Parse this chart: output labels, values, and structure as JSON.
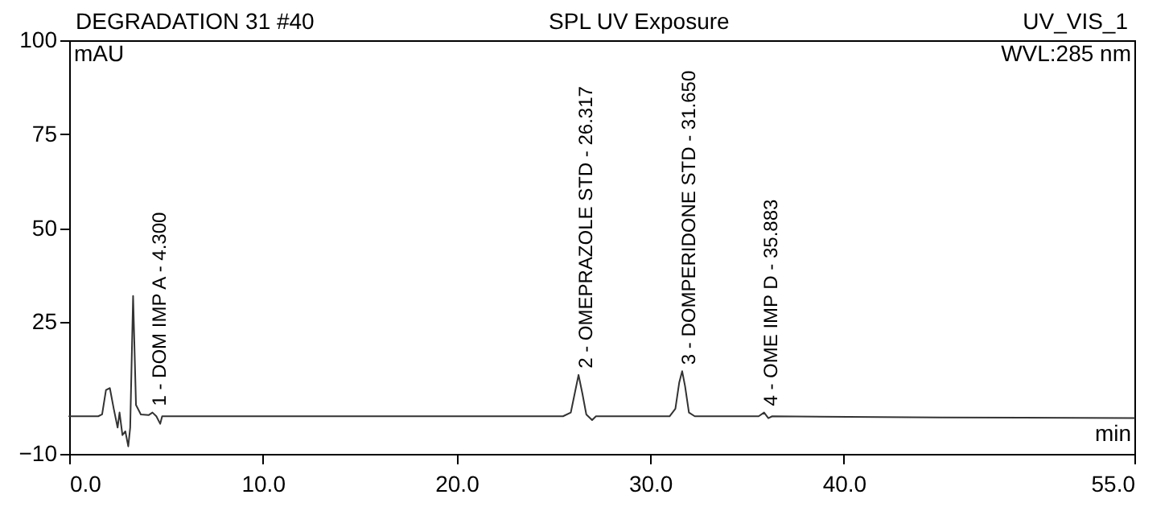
{
  "chart_data": {
    "type": "line",
    "title": "DEGRADATION 31 #40",
    "subtitle": "SPL UV Exposure",
    "xlabel": "min",
    "ylabel": "mAU",
    "x": [
      0,
      0.5,
      1.5,
      1.7,
      1.9,
      2.1,
      2.3,
      2.5,
      2.6,
      2.75,
      2.9,
      3.05,
      3.15,
      3.3,
      3.45,
      3.7,
      4.1,
      4.3,
      4.5,
      4.7,
      4.8,
      10,
      20,
      25.5,
      25.9,
      26.1,
      26.3,
      26.5,
      26.7,
      27.0,
      27.2,
      31.0,
      31.3,
      31.5,
      31.65,
      31.8,
      32.0,
      32.3,
      35.6,
      35.88,
      36.1,
      36.3,
      45,
      55
    ],
    "series": [
      {
        "color": "#333333",
        "values": [
          0,
          0,
          0,
          0.5,
          7,
          7.5,
          2,
          -3,
          1,
          -5,
          -4,
          -8,
          -3,
          32,
          3,
          0.5,
          0.3,
          1,
          0,
          -2,
          0,
          0,
          0,
          0,
          1,
          6,
          11,
          6,
          0.5,
          -1,
          0,
          0,
          2,
          9,
          12,
          8,
          1,
          0,
          0,
          1,
          -0.5,
          0,
          -0.3,
          -0.5
        ]
      }
    ],
    "xlim": [
      0,
      55
    ],
    "xticks": [
      {
        "value": 0,
        "label": "0.0"
      },
      {
        "value": 10,
        "label": "10.0"
      },
      {
        "value": 20,
        "label": "20.0"
      },
      {
        "value": 30,
        "label": "30.0"
      },
      {
        "value": 40,
        "label": "40.0"
      },
      {
        "value": 55,
        "label": "55.0"
      }
    ],
    "ylim": [
      -10,
      100
    ],
    "yticks": [
      -10,
      25,
      50,
      75,
      100
    ],
    "grid": false,
    "marker": "none",
    "line_style": "solid",
    "annotations": [
      "UV_VIS_1",
      "WVL:285 nm",
      {
        "text": "1 - DOM IMP A - 4.300",
        "x": 4.3,
        "y": 1
      },
      {
        "text": "2 - OMEPRAZOLE STD - 26.317",
        "x": 26.317,
        "y": 11
      },
      {
        "text": "3 - DOMPERIDONE STD - 31.650",
        "x": 31.65,
        "y": 12
      },
      {
        "text": "4 - OME IMP D - 35.883",
        "x": 35.883,
        "y": 1
      }
    ]
  }
}
